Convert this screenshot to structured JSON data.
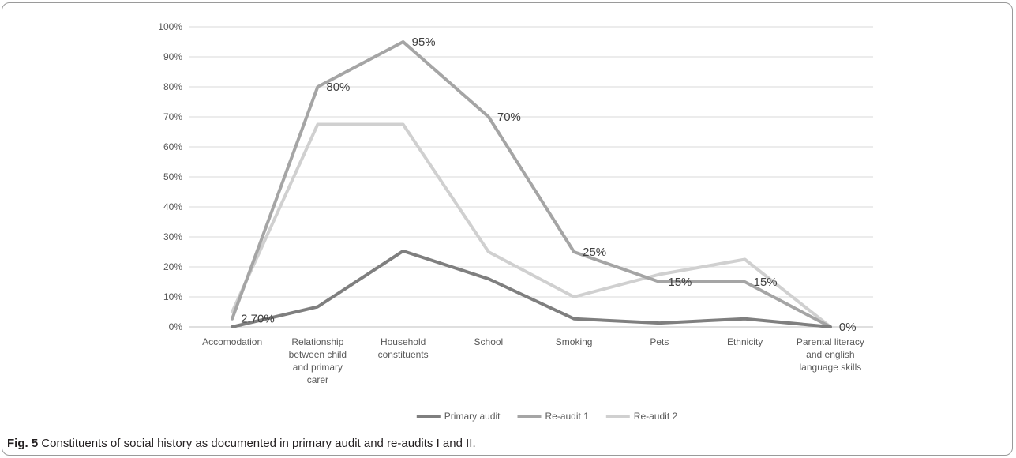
{
  "chart_data": {
    "type": "line",
    "categories": [
      [
        "Accomodation"
      ],
      [
        "Relationship",
        "between child",
        "and primary",
        "carer"
      ],
      [
        "Household",
        "constituents"
      ],
      [
        "School"
      ],
      [
        "Smoking"
      ],
      [
        "Pets"
      ],
      [
        "Ethnicity"
      ],
      [
        "Parental literacy",
        "and english",
        "language skills"
      ]
    ],
    "ylim": [
      0,
      100
    ],
    "yticks": [
      "0%",
      "10%",
      "20%",
      "30%",
      "40%",
      "50%",
      "60%",
      "70%",
      "80%",
      "90%",
      "100%"
    ],
    "series": [
      {
        "name": "Primary audit",
        "color": "#7f7f7f",
        "values": [
          0,
          6.7,
          25.3,
          16,
          2.7,
          1.3,
          2.7,
          0
        ]
      },
      {
        "name": "Re-audit 1",
        "color": "#a5a5a5",
        "values": [
          2.7,
          80,
          95,
          70,
          25,
          15,
          15,
          0
        ]
      },
      {
        "name": "Re-audit 2",
        "color": "#d0d0d0",
        "values": [
          5,
          67.5,
          67.5,
          25,
          10,
          17.5,
          22.5,
          0
        ]
      }
    ],
    "data_labels": [
      {
        "series": 1,
        "index": 0,
        "text": "2.70%"
      },
      {
        "series": 1,
        "index": 1,
        "text": "80%"
      },
      {
        "series": 1,
        "index": 2,
        "text": "95%"
      },
      {
        "series": 1,
        "index": 3,
        "text": "70%"
      },
      {
        "series": 1,
        "index": 4,
        "text": "25%"
      },
      {
        "series": 1,
        "index": 5,
        "text": "15%"
      },
      {
        "series": 1,
        "index": 6,
        "text": "15%"
      },
      {
        "series": 1,
        "index": 7,
        "text": "0%"
      }
    ],
    "grid": true,
    "legend": "bottom"
  },
  "caption": {
    "label": "Fig. 5",
    "text": " Constituents of social history as documented in primary audit and re-audits I and II."
  }
}
